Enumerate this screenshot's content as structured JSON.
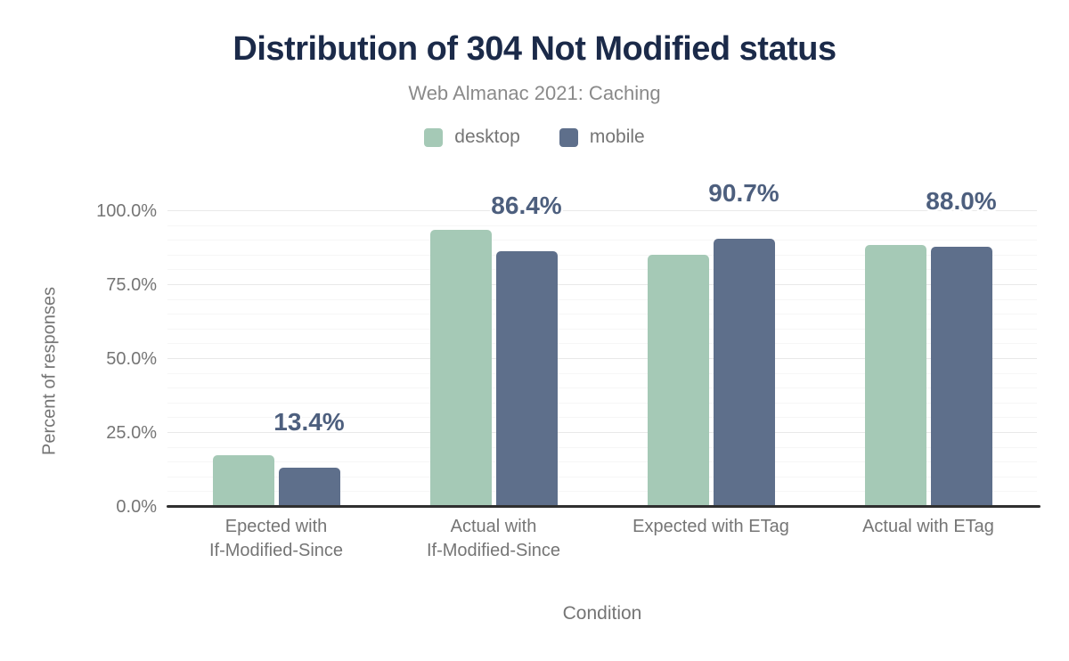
{
  "title": "Distribution of 304 Not Modified status",
  "subtitle": "Web Almanac 2021: Caching",
  "legend": {
    "items": [
      {
        "label": "desktop",
        "color": "#a5c9b6"
      },
      {
        "label": "mobile",
        "color": "#5e6f8b"
      }
    ]
  },
  "chart_data": {
    "type": "bar",
    "categories": [
      "Epected with\nIf-Modified-Since",
      "Actual with\nIf-Modified-Since",
      "Expected with ETag",
      "Actual with ETag"
    ],
    "series": [
      {
        "name": "desktop",
        "color": "#a5c9b6",
        "values": [
          17.5,
          93.6,
          85.3,
          88.6
        ]
      },
      {
        "name": "mobile",
        "color": "#5e6f8b",
        "values": [
          13.4,
          86.4,
          90.7,
          88.0
        ]
      }
    ],
    "data_labels": {
      "on_series": "mobile",
      "texts": [
        "13.4%",
        "86.4%",
        "90.7%",
        "88.0%"
      ]
    },
    "title": "Distribution of 304 Not Modified status",
    "subtitle": "Web Almanac 2021: Caching",
    "xlabel": "Condition",
    "ylabel": "Percent of responses",
    "ylim": [
      0,
      100
    ],
    "ytick_values": [
      0,
      25,
      50,
      75,
      100
    ],
    "ytick_labels": [
      "0.0%",
      "25.0%",
      "50.0%",
      "75.0%",
      "100.0%"
    ],
    "grid": {
      "major_step": 25,
      "minor_step": 5,
      "legend_position": "top"
    }
  },
  "colors": {
    "title": "#1b2a49",
    "subtitle": "#8a8a8a",
    "axis_text": "#757575",
    "data_label": "#4d5f7e",
    "desktop_bar": "#a5c9b6",
    "mobile_bar": "#5e6f8b",
    "grid_major": "#e9e9e9",
    "grid_minor": "#f6f6f6",
    "axis_line": "#2f2f2f"
  }
}
